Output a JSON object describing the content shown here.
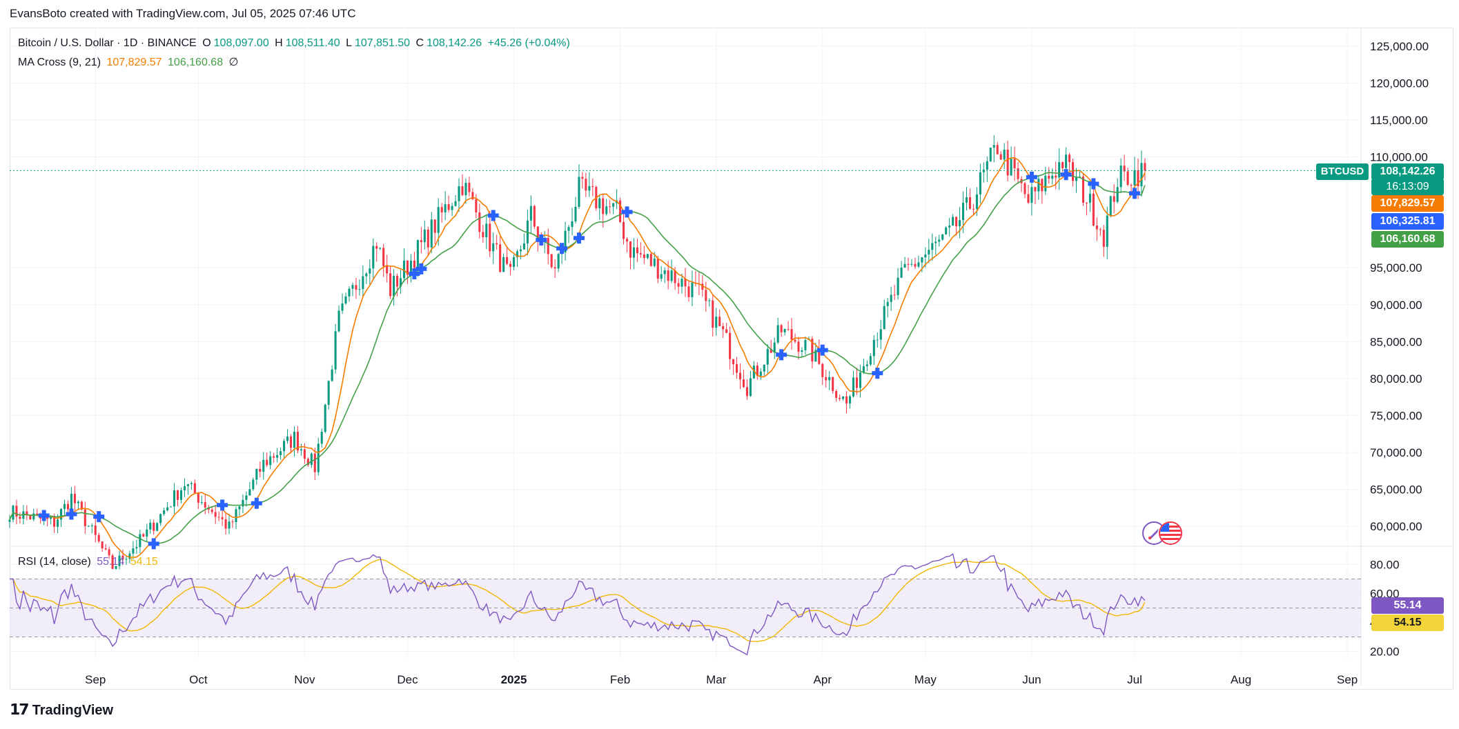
{
  "header": {
    "attribution": "EvansBoto created with TradingView.com, Jul 05, 2025 07:46 UTC"
  },
  "legend": {
    "symbol": "Bitcoin / U.S. Dollar · 1D · BINANCE",
    "open_label": "O",
    "open": "108,097.00",
    "high_label": "H",
    "high": "108,511.40",
    "low_label": "L",
    "low": "107,851.50",
    "close_label": "C",
    "close": "108,142.26",
    "change": "+45.26 (+0.04%)",
    "ma_name": "MA Cross (9, 21)",
    "ma_fast": "107,829.57",
    "ma_slow": "106,160.68",
    "ma_symbol": "∅",
    "rsi_name": "RSI (14, close)",
    "rsi_value": "55.14",
    "rsi_ma": "54.15"
  },
  "price_tags": {
    "ticker": "BTCUSD",
    "last": "108,142.26",
    "countdown": "16:13:09",
    "ma_fast": "107,829.57",
    "blue": "106,325.81",
    "ma_slow": "106,160.68"
  },
  "colors": {
    "up": "#089981",
    "down": "#f23645",
    "ma_fast": "#f57c00",
    "ma_slow": "#43a047",
    "cross": "#2962ff",
    "rsi": "#7e57c2",
    "rsi_ma": "#f2b705",
    "grid": "#f0f3fa",
    "band": "#ede7f6"
  },
  "footer": {
    "brand": "TradingView"
  },
  "chart_data": {
    "type": "candlestick",
    "price_axis_ticks": [
      "125,000.00",
      "120,000.00",
      "115,000.00",
      "110,000.00",
      "95,000.00",
      "90,000.00",
      "85,000.00",
      "80,000.00",
      "75,000.00",
      "70,000.00",
      "65,000.00",
      "60,000.00"
    ],
    "price_ylim": [
      57500,
      127500
    ],
    "rsi_axis_ticks": [
      "80.00",
      "60.00",
      "40.00",
      "20.00"
    ],
    "rsi_ylim": [
      15,
      85
    ],
    "rsi_bands": [
      70,
      30
    ],
    "x_labels": [
      "Sep",
      "Oct",
      "Nov",
      "Dec",
      "2025",
      "Feb",
      "Mar",
      "Apr",
      "May",
      "Jun",
      "Jul",
      "Aug",
      "Sep"
    ],
    "x_range": [
      "2024-08-07",
      "2025-09-05"
    ],
    "close_anchors": [
      [
        "2024-08-07",
        62000
      ],
      [
        "2024-08-20",
        60500
      ],
      [
        "2024-08-25",
        64000
      ],
      [
        "2024-09-06",
        54500
      ],
      [
        "2024-09-15",
        58500
      ],
      [
        "2024-09-27",
        65800
      ],
      [
        "2024-10-10",
        59800
      ],
      [
        "2024-10-20",
        68500
      ],
      [
        "2024-10-29",
        72000
      ],
      [
        "2024-11-04",
        68000
      ],
      [
        "2024-11-11",
        88000
      ],
      [
        "2024-11-22",
        98500
      ],
      [
        "2024-11-26",
        92000
      ],
      [
        "2024-12-05",
        98000
      ],
      [
        "2024-12-17",
        106500
      ],
      [
        "2024-12-25",
        98500
      ],
      [
        "2024-12-31",
        93500
      ],
      [
        "2025-01-06",
        102000
      ],
      [
        "2025-01-13",
        94500
      ],
      [
        "2025-01-20",
        105500
      ],
      [
        "2025-01-31",
        102500
      ],
      [
        "2025-02-04",
        97500
      ],
      [
        "2025-02-24",
        91500
      ],
      [
        "2025-03-03",
        86000
      ],
      [
        "2025-03-10",
        79000
      ],
      [
        "2025-03-20",
        86500
      ],
      [
        "2025-03-28",
        84000
      ],
      [
        "2025-04-08",
        76500
      ],
      [
        "2025-04-15",
        84500
      ],
      [
        "2025-04-25",
        94500
      ],
      [
        "2025-05-08",
        99500
      ],
      [
        "2025-05-14",
        103500
      ],
      [
        "2025-05-22",
        111500
      ],
      [
        "2025-05-31",
        104000
      ],
      [
        "2025-06-10",
        109500
      ],
      [
        "2025-06-17",
        104500
      ],
      [
        "2025-06-22",
        99500
      ],
      [
        "2025-06-26",
        107000
      ],
      [
        "2025-07-04",
        108142
      ]
    ],
    "ma_fast_last": 107829.57,
    "ma_slow_last": 106160.68,
    "rsi_last": 55.14,
    "rsi_ma_last": 54.15
  }
}
